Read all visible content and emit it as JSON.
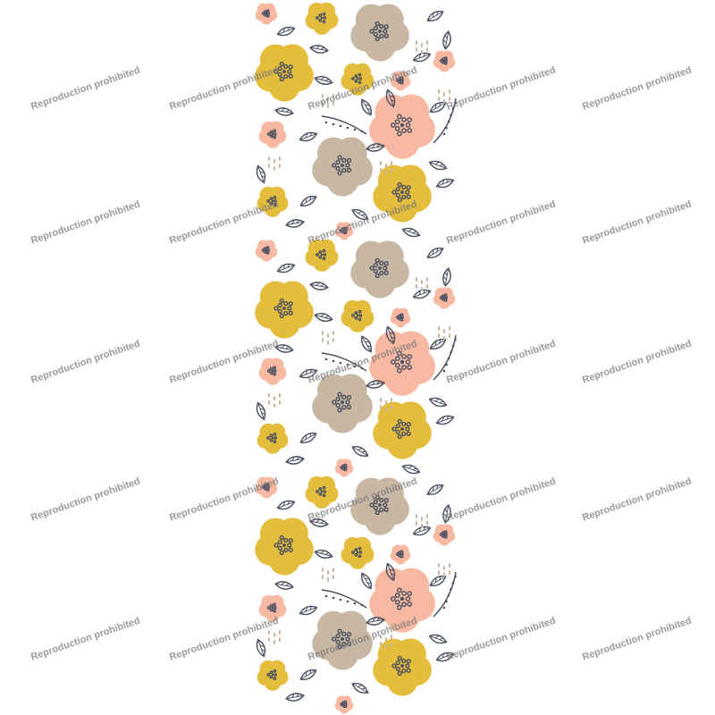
{
  "watermark": {
    "text": "Reproduction prohibited"
  },
  "colors": {
    "yellow": "#e5bd3c",
    "pink": "#f8b9a2",
    "beige": "#c8b7a2",
    "ink": "#4a5060",
    "background": "#ffffff"
  }
}
